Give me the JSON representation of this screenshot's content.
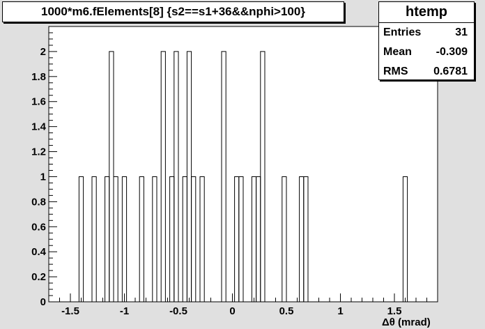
{
  "title": "1000*m6.fElements[8] {s2==s1+36&&nphi>100}",
  "stats": {
    "name": "htemp",
    "rows": [
      {
        "label": "Entries",
        "value": "31"
      },
      {
        "label": "Mean",
        "value": "-0.309"
      },
      {
        "label": "RMS",
        "value": "0.6781"
      }
    ]
  },
  "colors": {
    "canvas": "#e0e0e0",
    "frame": "#ffffff",
    "line": "#000000"
  },
  "chart_data": {
    "type": "histogram",
    "title": "1000*m6.fElements[8] {s2==s1+36&&nphi>100}",
    "xlabel": "Δθ (mrad)",
    "ylabel": "",
    "xlim": [
      -1.7,
      1.9
    ],
    "ylim": [
      0,
      2.2
    ],
    "bin_width": 0.04,
    "x_ticks": [
      -1.5,
      -1,
      -0.5,
      0,
      0.5,
      1,
      1.5
    ],
    "x_tick_labels": [
      "-1.5",
      "-1",
      "-0.5",
      "0",
      "0.5",
      "1",
      "1.5"
    ],
    "y_ticks": [
      0,
      0.2,
      0.4,
      0.6,
      0.8,
      1,
      1.2,
      1.4,
      1.6,
      1.8,
      2
    ],
    "y_tick_labels": [
      "0",
      "0.2",
      "0.4",
      "0.6",
      "0.8",
      "1",
      "1.2",
      "1.4",
      "1.6",
      "1.8",
      "2"
    ],
    "bins": [
      {
        "x_low": -1.42,
        "x_high": -1.38,
        "count": 1
      },
      {
        "x_low": -1.3,
        "x_high": -1.26,
        "count": 1
      },
      {
        "x_low": -1.18,
        "x_high": -1.14,
        "count": 1
      },
      {
        "x_low": -1.14,
        "x_high": -1.1,
        "count": 2
      },
      {
        "x_low": -1.1,
        "x_high": -1.06,
        "count": 1
      },
      {
        "x_low": -1.02,
        "x_high": -0.98,
        "count": 1
      },
      {
        "x_low": -0.86,
        "x_high": -0.82,
        "count": 1
      },
      {
        "x_low": -0.74,
        "x_high": -0.7,
        "count": 1
      },
      {
        "x_low": -0.66,
        "x_high": -0.62,
        "count": 2
      },
      {
        "x_low": -0.58,
        "x_high": -0.54,
        "count": 1
      },
      {
        "x_low": -0.54,
        "x_high": -0.5,
        "count": 2
      },
      {
        "x_low": -0.46,
        "x_high": -0.42,
        "count": 1
      },
      {
        "x_low": -0.42,
        "x_high": -0.38,
        "count": 2
      },
      {
        "x_low": -0.38,
        "x_high": -0.34,
        "count": 1
      },
      {
        "x_low": -0.3,
        "x_high": -0.26,
        "count": 1
      },
      {
        "x_low": -0.1,
        "x_high": -0.06,
        "count": 2
      },
      {
        "x_low": 0.02,
        "x_high": 0.06,
        "count": 1
      },
      {
        "x_low": 0.06,
        "x_high": 0.1,
        "count": 1
      },
      {
        "x_low": 0.18,
        "x_high": 0.22,
        "count": 1
      },
      {
        "x_low": 0.22,
        "x_high": 0.26,
        "count": 1
      },
      {
        "x_low": 0.26,
        "x_high": 0.3,
        "count": 2
      },
      {
        "x_low": 0.46,
        "x_high": 0.5,
        "count": 1
      },
      {
        "x_low": 0.62,
        "x_high": 0.66,
        "count": 1
      },
      {
        "x_low": 0.66,
        "x_high": 0.7,
        "count": 1
      },
      {
        "x_low": 1.58,
        "x_high": 1.62,
        "count": 1
      }
    ],
    "grid": false,
    "legend": "top-right"
  }
}
